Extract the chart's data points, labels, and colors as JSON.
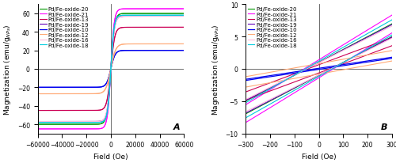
{
  "samples": [
    {
      "name": "Pd/Fe-oxide-20",
      "color": "#009900",
      "Ms": 60,
      "Hc": 50,
      "steep": 3000,
      "lw": 0.8
    },
    {
      "name": "Pd/Fe-oxide-21",
      "color": "#ff00ff",
      "Ms": 65,
      "Hc": 60,
      "steep": 2800,
      "lw": 0.8
    },
    {
      "name": "Pd/Fe-oxide-13",
      "color": "#cc0055",
      "Ms": 45,
      "Hc": 45,
      "steep": 3200,
      "lw": 0.8
    },
    {
      "name": "Pd/Fe-oxide-19",
      "color": "#6600bb",
      "Ms": 57,
      "Hc": 50,
      "steep": 2900,
      "lw": 0.8
    },
    {
      "name": "Pd/Fe-oxide-10",
      "color": "#0000ee",
      "Ms": 20,
      "Hc": 15,
      "steep": 3500,
      "lw": 0.9
    },
    {
      "name": "Pd/Fe-oxide-12",
      "color": "#ffaa77",
      "Ms": 27,
      "Hc": 120,
      "steep": 4000,
      "lw": 0.8
    },
    {
      "name": "Pd/Fe-oxide-16",
      "color": "#ffbbdd",
      "Ms": 57,
      "Hc": 50,
      "steep": 3000,
      "lw": 0.8
    },
    {
      "name": "Pd/Fe-oxide-18",
      "color": "#00ccdd",
      "Ms": 58,
      "Hc": 55,
      "steep": 2700,
      "lw": 0.8
    }
  ],
  "xlim_full": [
    -60000,
    60000
  ],
  "ylim_full": [
    -70,
    70
  ],
  "yticks_full": [
    -60,
    -40,
    -20,
    0,
    20,
    40,
    60
  ],
  "xticks_full": [
    -60000,
    -40000,
    -20000,
    0,
    20000,
    40000,
    60000
  ],
  "xlim_zoom": [
    -300,
    300
  ],
  "ylim_zoom": [
    -10,
    10
  ],
  "yticks_zoom": [
    -10,
    -5,
    0,
    5,
    10
  ],
  "xticks_zoom": [
    -300,
    -200,
    -100,
    0,
    100,
    200,
    300
  ],
  "xlabel": "Field (Oe)",
  "ylabel_full": "Magnetization (emu/g$_{NPs}$)",
  "label_A": "A",
  "label_B": "B",
  "bg": "#ffffff",
  "legend_fontsize": 5.0,
  "axis_fontsize": 6.5,
  "tick_fontsize": 5.5
}
